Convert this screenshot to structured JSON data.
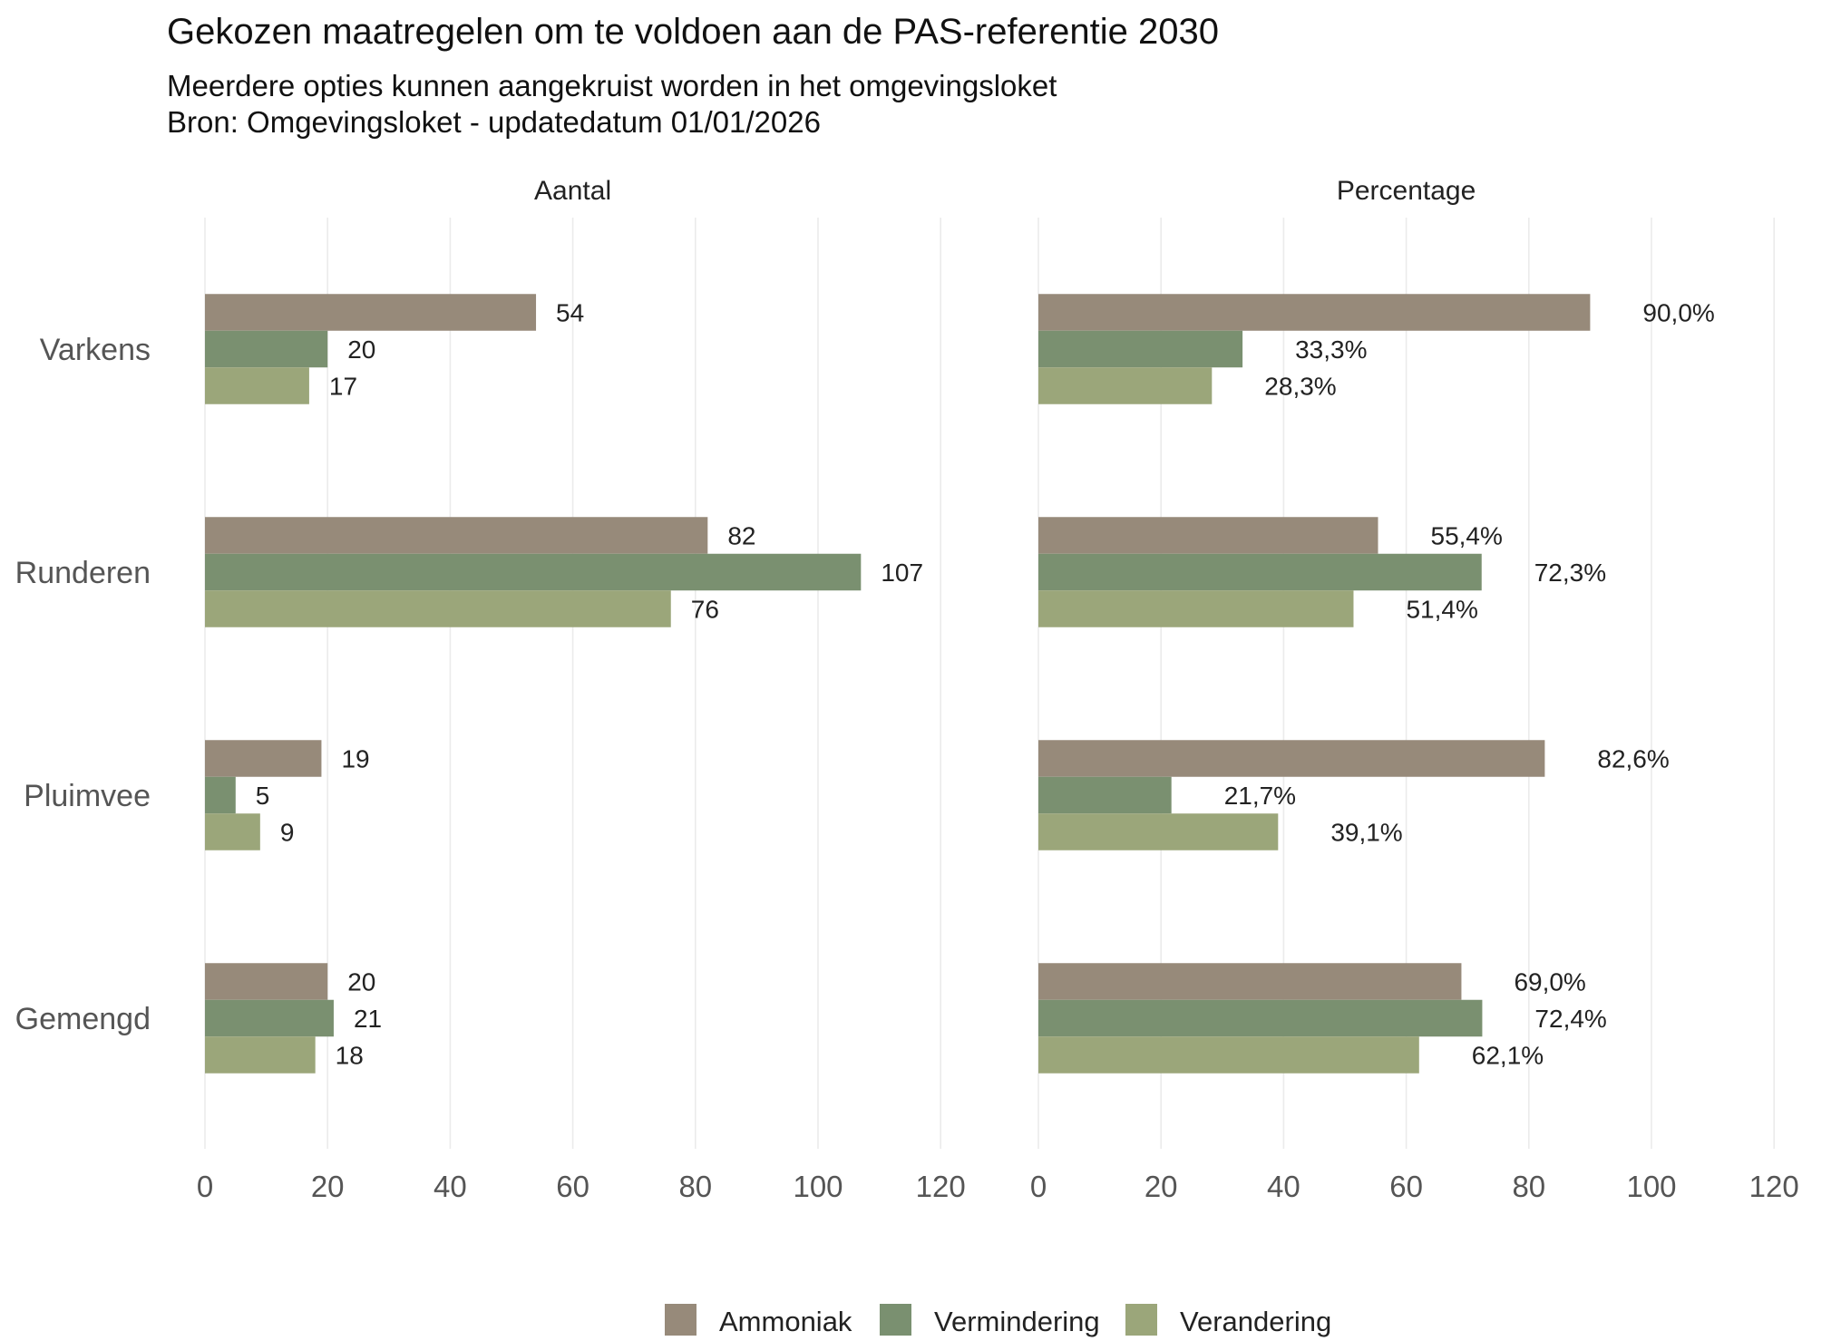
{
  "chart_data": {
    "type": "bar",
    "orientation": "horizontal",
    "title": "Gekozen maatregelen om te voldoen aan de PAS-referentie 2030",
    "subtitle": [
      "Meerdere opties kunnen aangekruist worden in het omgevingsloket",
      "Bron: Omgevingsloket - updatedatum 01/01/2026"
    ],
    "categories": [
      "Varkens",
      "Runderen",
      "Pluimvee",
      "Gemengd"
    ],
    "legend": {
      "position": "bottom",
      "entries": [
        "Ammoniak",
        "Vermindering",
        "Verandering"
      ]
    },
    "colors": {
      "Ammoniak": "#978a7a",
      "Vermindering": "#7a9070",
      "Verandering": "#9ba67a"
    },
    "grid": true,
    "xlim": [
      0,
      120
    ],
    "ticks": [
      "0",
      "20",
      "40",
      "60",
      "80",
      "100",
      "120"
    ],
    "panels": [
      {
        "title": "Aantal",
        "series": [
          {
            "name": "Ammoniak",
            "values": [
              54,
              82,
              19,
              20
            ],
            "labels": [
              "54",
              "82",
              "19",
              "20"
            ]
          },
          {
            "name": "Vermindering",
            "values": [
              20,
              107,
              5,
              21
            ],
            "labels": [
              "20",
              "107",
              "5",
              "21"
            ]
          },
          {
            "name": "Verandering",
            "values": [
              17,
              76,
              9,
              18
            ],
            "labels": [
              "17",
              "76",
              "9",
              "18"
            ]
          }
        ]
      },
      {
        "title": "Percentage",
        "series": [
          {
            "name": "Ammoniak",
            "values": [
              90.0,
              55.4,
              82.6,
              69.0
            ],
            "labels": [
              "90,0%",
              "55,4%",
              "82,6%",
              "69,0%"
            ]
          },
          {
            "name": "Vermindering",
            "values": [
              33.3,
              72.3,
              21.7,
              72.4
            ],
            "labels": [
              "33,3%",
              "72,3%",
              "21,7%",
              "72,4%"
            ]
          },
          {
            "name": "Verandering",
            "values": [
              28.3,
              51.4,
              39.1,
              62.1
            ],
            "labels": [
              "28,3%",
              "51,4%",
              "39,1%",
              "62,1%"
            ]
          }
        ]
      }
    ]
  }
}
